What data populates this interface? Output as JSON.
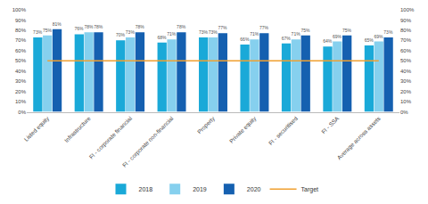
{
  "chart_data": {
    "type": "bar",
    "categories": [
      "Listed equity",
      "Infrastructure",
      "FI - corporate financial",
      "FI - corporate non-financial",
      "Property",
      "Private equity",
      "FI - securitised",
      "FI - SSA",
      "Average across assets"
    ],
    "series": [
      {
        "name": "2018",
        "type": "bar",
        "color": "#1aa9d8",
        "values": [
          73,
          76,
          70,
          68,
          73,
          66,
          67,
          64,
          65
        ],
        "value_labels": [
          "73%",
          "76%",
          "70%",
          "68%",
          "73%",
          "66%",
          "67%",
          "64%",
          "65%"
        ]
      },
      {
        "name": "2019",
        "type": "bar",
        "color": "#86d0ee",
        "values": [
          75,
          78,
          73,
          71,
          73,
          71,
          71,
          69,
          69
        ],
        "value_labels": [
          "75%",
          "78%",
          "73%",
          "71%",
          "73%",
          "71%",
          "71%",
          "69%",
          "69%"
        ]
      },
      {
        "name": "2020",
        "type": "bar",
        "color": "#1560b0",
        "values": [
          81,
          78,
          78,
          78,
          77,
          77,
          75,
          75,
          73
        ],
        "value_labels": [
          "81%",
          "78%",
          "78%",
          "78%",
          "77%",
          "77%",
          "75%",
          "75%",
          "73%"
        ]
      },
      {
        "name": "Target",
        "type": "line",
        "color": "#f0a030",
        "axis": "y2",
        "values": [
          50,
          50,
          50,
          50,
          50,
          50,
          50,
          50,
          50
        ]
      }
    ],
    "ylim": [
      0,
      100
    ],
    "yticks": [
      {
        "value": 0,
        "label": "0%"
      },
      {
        "value": 10,
        "label": "10%"
      },
      {
        "value": 20,
        "label": "20%"
      },
      {
        "value": 30,
        "label": "30%"
      },
      {
        "value": 40,
        "label": "40%"
      },
      {
        "value": 50,
        "label": "50%"
      },
      {
        "value": 60,
        "label": "60%"
      },
      {
        "value": 70,
        "label": "70%"
      },
      {
        "value": 80,
        "label": "80%"
      },
      {
        "value": 90,
        "label": "90%"
      },
      {
        "value": 100,
        "label": "100%"
      }
    ],
    "y2lim": [
      0,
      100
    ],
    "y2ticks": [
      {
        "value": 0,
        "label": "0%"
      },
      {
        "value": 10,
        "label": "10%"
      },
      {
        "value": 20,
        "label": "20%"
      },
      {
        "value": 30,
        "label": "30%"
      },
      {
        "value": 40,
        "label": "40%"
      },
      {
        "value": 50,
        "label": "50%"
      },
      {
        "value": 60,
        "label": "60%"
      },
      {
        "value": 70,
        "label": "70%"
      },
      {
        "value": 80,
        "label": "80%"
      },
      {
        "value": 90,
        "label": "90%"
      },
      {
        "value": 100,
        "label": "100%"
      }
    ],
    "grid": false,
    "legend": "bottom",
    "data_labels": true
  }
}
